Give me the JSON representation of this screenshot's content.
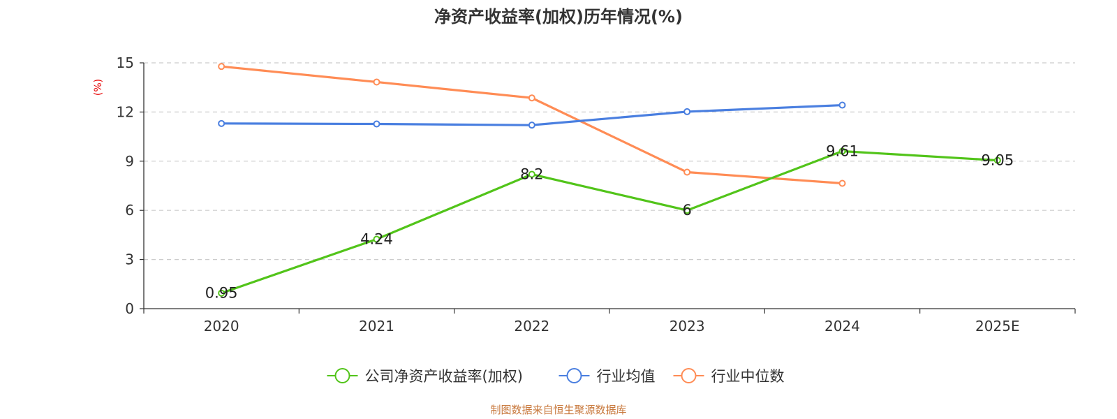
{
  "chart_data": {
    "type": "line",
    "title": "净资产收益率(加权)历年情况(%)",
    "ylabel": "(%)",
    "xlabel": "",
    "categories": [
      "2020",
      "2021",
      "2022",
      "2023",
      "2024",
      "2025E"
    ],
    "ylim": [
      0,
      15
    ],
    "yticks": [
      0,
      3,
      6,
      9,
      12,
      15
    ],
    "grid": true,
    "legend_position": "bottom",
    "series": [
      {
        "name": "公司净资产收益率(加权)",
        "color": "#52c41a",
        "values": [
          0.95,
          4.24,
          8.2,
          6,
          9.61,
          9.05
        ],
        "labels": [
          "0.95",
          "4.24",
          "8.2",
          "6",
          "9.61",
          "9.05"
        ]
      },
      {
        "name": "行业均值",
        "color": "#4a7fe0",
        "values": [
          11.3,
          11.27,
          11.2,
          12.02,
          12.42,
          null
        ]
      },
      {
        "name": "行业中位数",
        "color": "#ff8c55",
        "values": [
          14.78,
          13.83,
          12.86,
          8.33,
          7.65,
          null
        ]
      }
    ],
    "ylabel_color": "#e60000"
  },
  "source": {
    "text": "制图数据来自恒生聚源数据库",
    "color": "#c8783c"
  }
}
